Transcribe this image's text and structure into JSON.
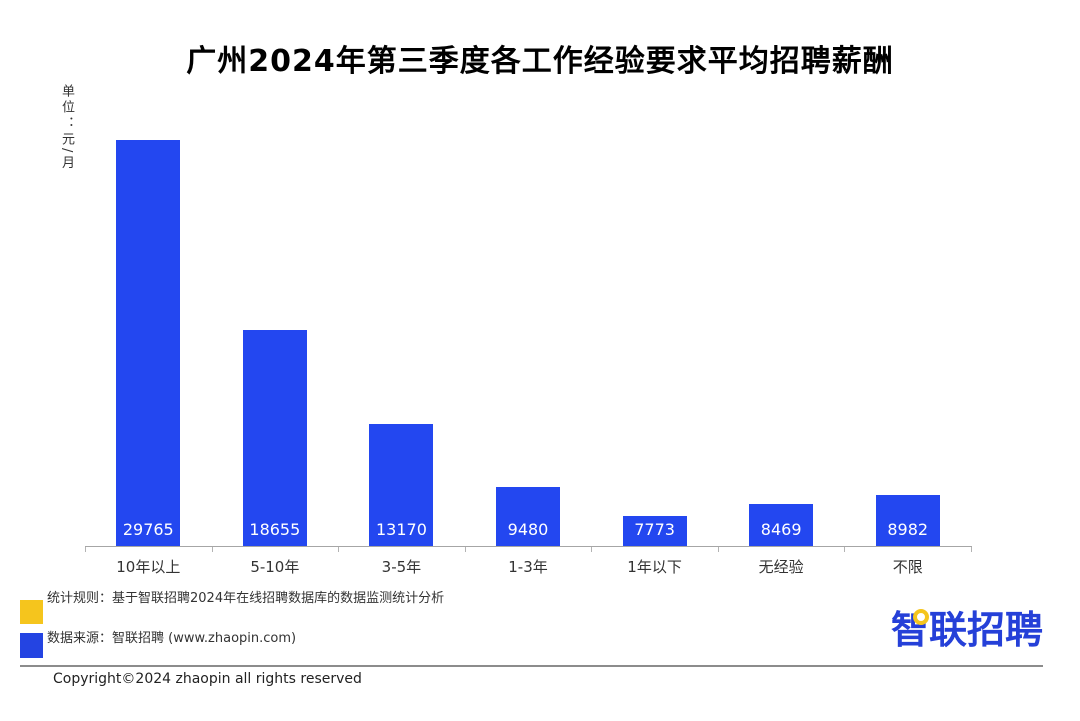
{
  "title": "广州2024年第三季度各工作经验要求平均招聘薪酬",
  "unit_label": "单位：元/月",
  "chart_data": {
    "type": "bar",
    "title": "广州2024年第三季度各工作经验要求平均招聘薪酬",
    "categories": [
      "10年以上",
      "5-10年",
      "3-5年",
      "1-3年",
      "1年以下",
      "无经验",
      "不限"
    ],
    "values": [
      29765,
      18655,
      13170,
      9480,
      7773,
      8469,
      8982
    ],
    "xlabel": "",
    "ylabel": "单位：元/月",
    "ylim": [
      6000,
      30000
    ],
    "bar_color": "#2347f0",
    "value_label_color": "#ffffff",
    "grid": false,
    "legend_position": "none",
    "value_labels_inside_bars": true
  },
  "footer": {
    "stat_rule": "统计规则：基于智联招聘2024年在线招聘数据库的数据监测统计分析",
    "data_source": "数据来源：智联招聘 (www.zhaopin.com)",
    "copyright": "Copyright©2024 zhaopin all rights reserved",
    "logo_zhi": "智",
    "logo_rest": "联招聘",
    "legend_yellow_color": "#f5c51d",
    "legend_blue_color": "#2444e2"
  }
}
